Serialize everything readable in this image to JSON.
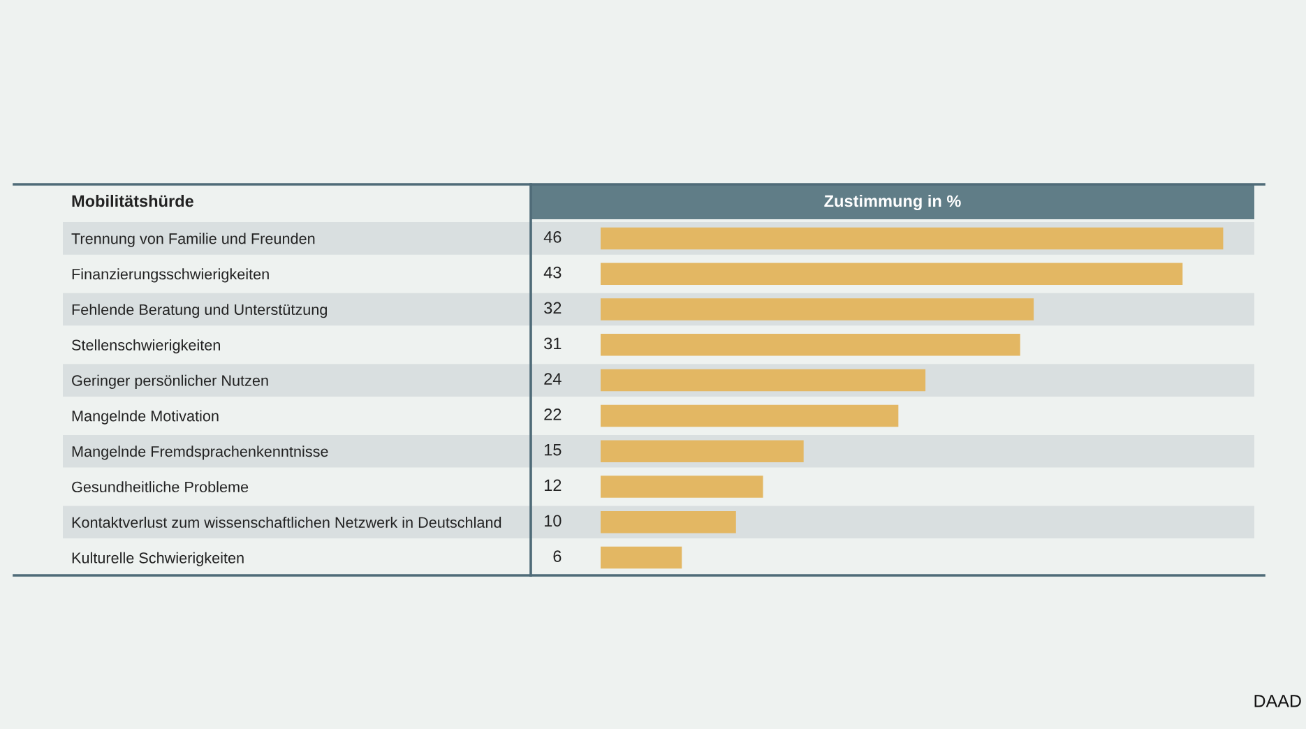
{
  "chart_data": {
    "type": "bar",
    "orientation": "horizontal",
    "ylabel": "Mobilitätshürde",
    "xlabel": "Zustimmung in %",
    "categories": [
      "Trennung von Familie und Freunden",
      "Finanzierungsschwierigkeiten",
      "Fehlende Beratung und Unterstützung",
      "Stellenschwierigkeiten",
      "Geringer persönlicher Nutzen",
      "Mangelnde Motivation",
      "Mangelnde Fremdsprachenkenntnisse",
      "Gesundheitliche Probleme",
      "Kontaktverlust zum wissenschaftlichen Netzwerk in Deutschland",
      "Kulturelle Schwierigkeiten"
    ],
    "values": [
      46,
      43,
      32,
      31,
      24,
      22,
      15,
      12,
      10,
      6
    ],
    "color": "#e3b763",
    "data_labels": true,
    "tick_labels": "y",
    "grid": false,
    "legend": false,
    "annotations": [
      "DAAD"
    ]
  }
}
